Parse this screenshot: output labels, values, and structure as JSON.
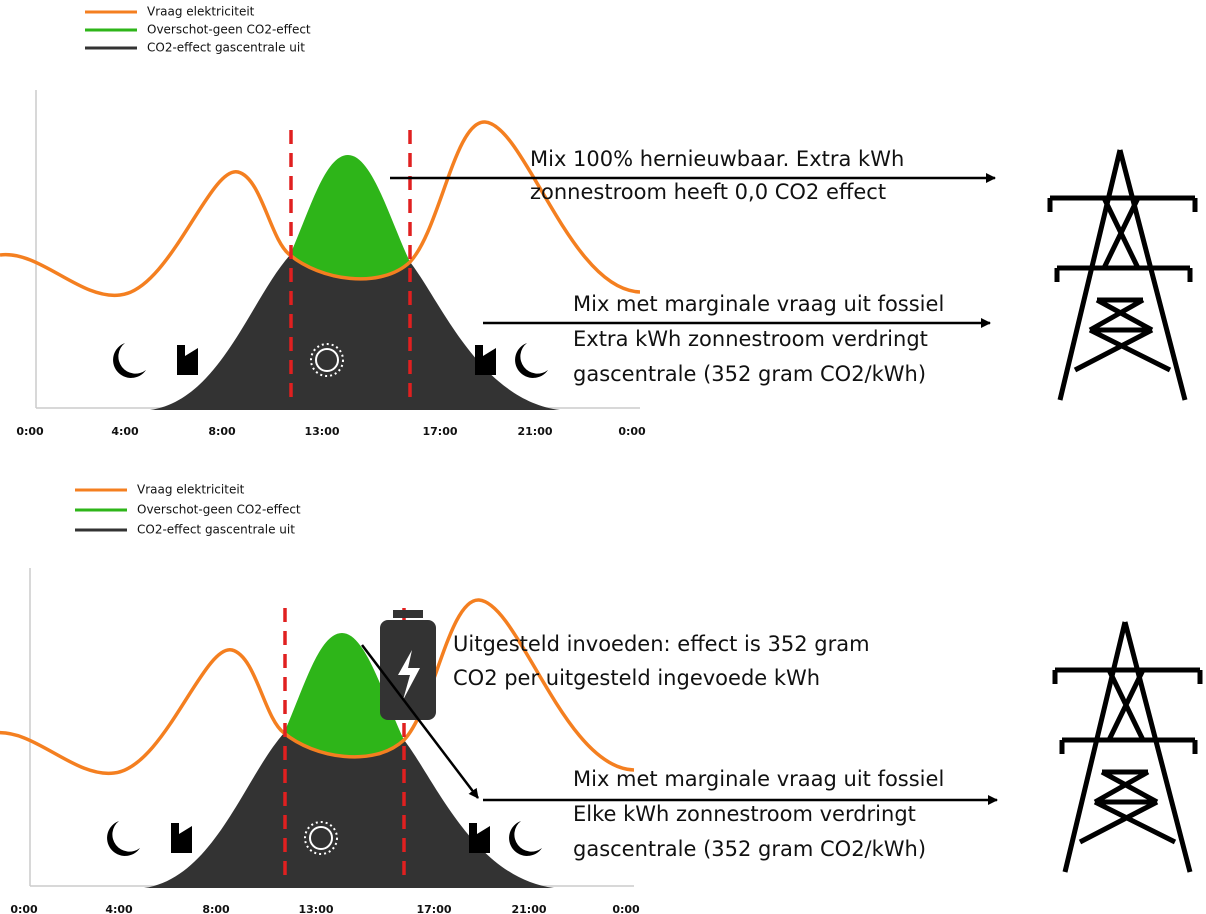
{
  "panels": [
    {
      "legend": [
        "Vraag elektriciteit",
        "Overschot-geen CO2-effect",
        "CO2-effect gascentrale uit"
      ],
      "x_labels": [
        "0:00",
        "4:00",
        "8:00",
        "13:00",
        "17:00",
        "21:00",
        "0:00"
      ],
      "annotations": [
        [
          "Mix 100% hernieuwbaar. Extra kWh",
          "zonnestroom heeft 0,0 CO2 effect"
        ],
        [
          "Mix met marginale vraag uit fossiel",
          "Extra kWh zonnestroom verdringt",
          "gascentrale (352 gram CO2/kWh)"
        ]
      ]
    },
    {
      "legend": [
        "Vraag elektriciteit",
        "Overschot-geen CO2-effect",
        "CO2-effect gascentrale uit"
      ],
      "x_labels": [
        "0:00",
        "4:00",
        "8:00",
        "13:00",
        "17:00",
        "21:00",
        "0:00"
      ],
      "annotations": [
        [
          "Uitgesteld invoeden: effect is 352 gram",
          "CO2 per uitgesteld ingevoede kWh"
        ],
        [
          "Mix met marginale vraag uit fossiel",
          "Elke kWh zonnestroom verdringt",
          "gascentrale (352 gram CO2/kWh)"
        ]
      ]
    }
  ]
}
